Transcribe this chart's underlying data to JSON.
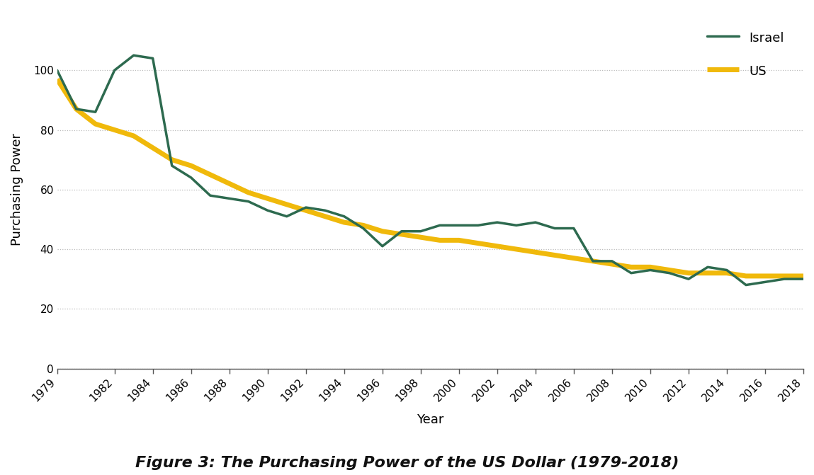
{
  "years": [
    1979,
    1980,
    1981,
    1982,
    1983,
    1984,
    1985,
    1986,
    1987,
    1988,
    1989,
    1990,
    1991,
    1992,
    1993,
    1994,
    1995,
    1996,
    1997,
    1998,
    1999,
    2000,
    2001,
    2002,
    2003,
    2004,
    2005,
    2006,
    2007,
    2008,
    2009,
    2010,
    2011,
    2012,
    2013,
    2014,
    2015,
    2016,
    2017,
    2018
  ],
  "israel": [
    100,
    87,
    86,
    100,
    105,
    104,
    68,
    64,
    58,
    57,
    56,
    53,
    51,
    54,
    53,
    51,
    47,
    41,
    46,
    46,
    48,
    48,
    48,
    49,
    48,
    49,
    47,
    47,
    36,
    36,
    32,
    33,
    32,
    30,
    34,
    33,
    28,
    29,
    30,
    30
  ],
  "us": [
    97,
    87,
    82,
    80,
    78,
    74,
    70,
    68,
    65,
    62,
    59,
    57,
    55,
    53,
    51,
    49,
    48,
    46,
    45,
    44,
    43,
    43,
    42,
    41,
    40,
    39,
    38,
    37,
    36,
    35,
    34,
    34,
    33,
    32,
    32,
    32,
    31,
    31,
    31,
    31
  ],
  "israel_color": "#2d6a4f",
  "us_color": "#f0b90b",
  "israel_label": "Israel",
  "us_label": "US",
  "xlabel": "Year",
  "ylabel": "Purchasing Power",
  "ylim": [
    0,
    120
  ],
  "yticks": [
    0,
    20,
    40,
    60,
    80,
    100
  ],
  "xtick_years": [
    1979,
    1982,
    1984,
    1986,
    1988,
    1990,
    1992,
    1994,
    1996,
    1998,
    2000,
    2002,
    2004,
    2006,
    2008,
    2010,
    2012,
    2014,
    2016,
    2018
  ],
  "figure_caption": "Figure 3: The Purchasing Power of the US Dollar (1979-2018)",
  "israel_linewidth": 2.5,
  "us_linewidth": 5.0,
  "grid_color": "#bbbbbb",
  "background_color": "#ffffff",
  "legend_fontsize": 13,
  "axis_fontsize": 13,
  "tick_fontsize": 11,
  "caption_fontsize": 16
}
